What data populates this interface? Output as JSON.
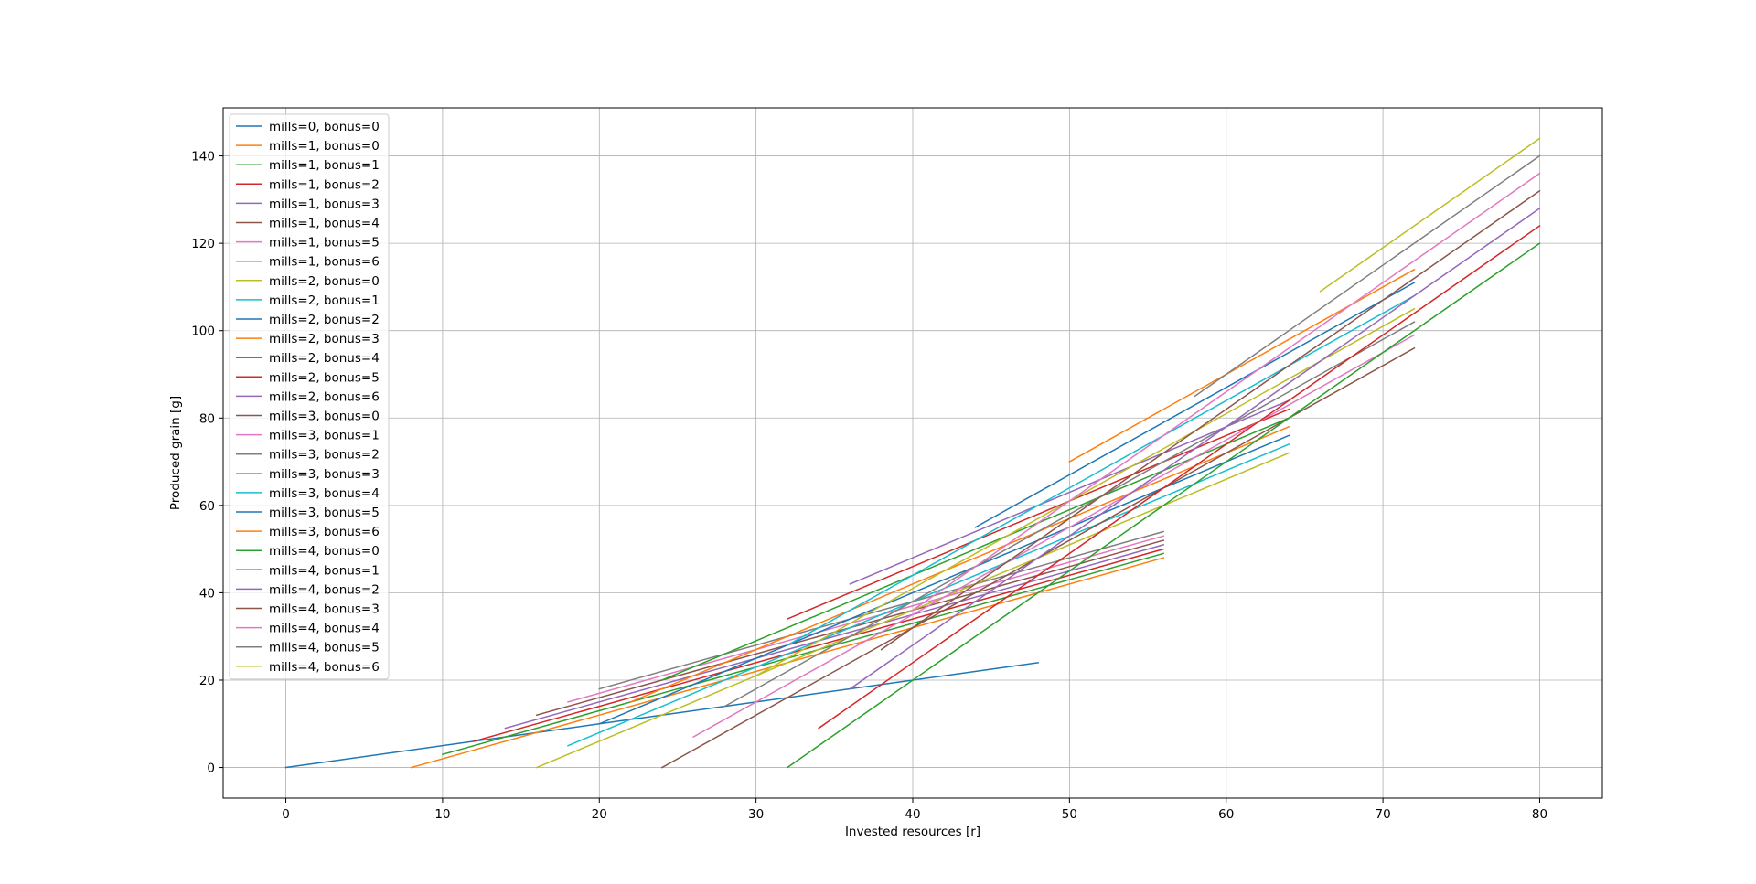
{
  "chart_data": {
    "type": "line",
    "title": "",
    "xlabel": "Invested resources [r]",
    "ylabel": "Produced grain [g]",
    "xlim": [
      -4,
      84
    ],
    "ylim": [
      -7,
      151
    ],
    "xticks": [
      0,
      10,
      20,
      30,
      40,
      50,
      60,
      70,
      80
    ],
    "yticks": [
      0,
      20,
      40,
      60,
      80,
      100,
      120,
      140
    ],
    "grid": true,
    "legend_position": "upper-left",
    "series": [
      {
        "name": "mills=0, bonus=0",
        "color": "#1f77b4",
        "x": [
          0,
          12,
          20,
          28,
          36,
          48
        ],
        "y": [
          0,
          6,
          10,
          14,
          18,
          24
        ]
      },
      {
        "name": "mills=1, bonus=0",
        "color": "#ff7f0e",
        "x": [
          8,
          56
        ],
        "y": [
          0,
          48
        ]
      },
      {
        "name": "mills=1, bonus=1",
        "color": "#2ca02c",
        "x": [
          10,
          56
        ],
        "y": [
          3,
          49
        ]
      },
      {
        "name": "mills=1, bonus=2",
        "color": "#d62728",
        "x": [
          12,
          56
        ],
        "y": [
          6,
          50
        ]
      },
      {
        "name": "mills=1, bonus=3",
        "color": "#9467bd",
        "x": [
          14,
          56
        ],
        "y": [
          9,
          51
        ]
      },
      {
        "name": "mills=1, bonus=4",
        "color": "#8c564b",
        "x": [
          16,
          56
        ],
        "y": [
          12,
          52
        ]
      },
      {
        "name": "mills=1, bonus=5",
        "color": "#e377c2",
        "x": [
          18,
          56
        ],
        "y": [
          15,
          53
        ]
      },
      {
        "name": "mills=1, bonus=6",
        "color": "#7f7f7f",
        "x": [
          20,
          56
        ],
        "y": [
          18,
          54
        ]
      },
      {
        "name": "mills=2, bonus=0",
        "color": "#bcbd22",
        "x": [
          16,
          64
        ],
        "y": [
          0,
          72
        ]
      },
      {
        "name": "mills=2, bonus=1",
        "color": "#17becf",
        "x": [
          18,
          64
        ],
        "y": [
          5,
          74
        ]
      },
      {
        "name": "mills=2, bonus=2",
        "color": "#1f77b4",
        "x": [
          20,
          64
        ],
        "y": [
          10,
          76
        ]
      },
      {
        "name": "mills=2, bonus=3",
        "color": "#ff7f0e",
        "x": [
          22,
          64
        ],
        "y": [
          15,
          78
        ]
      },
      {
        "name": "mills=2, bonus=4",
        "color": "#2ca02c",
        "x": [
          24,
          64
        ],
        "y": [
          20,
          80
        ]
      },
      {
        "name": "mills=2, bonus=5",
        "color": "#d62728",
        "x": [
          32,
          64
        ],
        "y": [
          34,
          82
        ]
      },
      {
        "name": "mills=2, bonus=6",
        "color": "#9467bd",
        "x": [
          36,
          64
        ],
        "y": [
          42,
          84
        ]
      },
      {
        "name": "mills=3, bonus=0",
        "color": "#8c564b",
        "x": [
          24,
          72
        ],
        "y": [
          0,
          96
        ]
      },
      {
        "name": "mills=3, bonus=1",
        "color": "#e377c2",
        "x": [
          26,
          72
        ],
        "y": [
          7,
          99
        ]
      },
      {
        "name": "mills=3, bonus=2",
        "color": "#7f7f7f",
        "x": [
          28,
          72
        ],
        "y": [
          14,
          102
        ]
      },
      {
        "name": "mills=3, bonus=3",
        "color": "#bcbd22",
        "x": [
          30,
          72
        ],
        "y": [
          21,
          105
        ]
      },
      {
        "name": "mills=3, bonus=4",
        "color": "#17becf",
        "x": [
          32,
          72
        ],
        "y": [
          28,
          108
        ]
      },
      {
        "name": "mills=3, bonus=5",
        "color": "#1f77b4",
        "x": [
          44,
          72
        ],
        "y": [
          55,
          111
        ]
      },
      {
        "name": "mills=3, bonus=6",
        "color": "#ff7f0e",
        "x": [
          50,
          72
        ],
        "y": [
          70,
          114
        ]
      },
      {
        "name": "mills=4, bonus=0",
        "color": "#2ca02c",
        "x": [
          32,
          80
        ],
        "y": [
          0,
          120
        ]
      },
      {
        "name": "mills=4, bonus=1",
        "color": "#d62728",
        "x": [
          34,
          80
        ],
        "y": [
          9,
          124
        ]
      },
      {
        "name": "mills=4, bonus=2",
        "color": "#9467bd",
        "x": [
          36,
          80
        ],
        "y": [
          18,
          128
        ]
      },
      {
        "name": "mills=4, bonus=3",
        "color": "#8c564b",
        "x": [
          38,
          80
        ],
        "y": [
          27,
          132
        ]
      },
      {
        "name": "mills=4, bonus=4",
        "color": "#e377c2",
        "x": [
          40,
          80
        ],
        "y": [
          36,
          136
        ]
      },
      {
        "name": "mills=4, bonus=5",
        "color": "#7f7f7f",
        "x": [
          58,
          80
        ],
        "y": [
          85,
          140
        ]
      },
      {
        "name": "mills=4, bonus=6",
        "color": "#bcbd22",
        "x": [
          66,
          80
        ],
        "y": [
          109,
          144
        ]
      }
    ]
  }
}
